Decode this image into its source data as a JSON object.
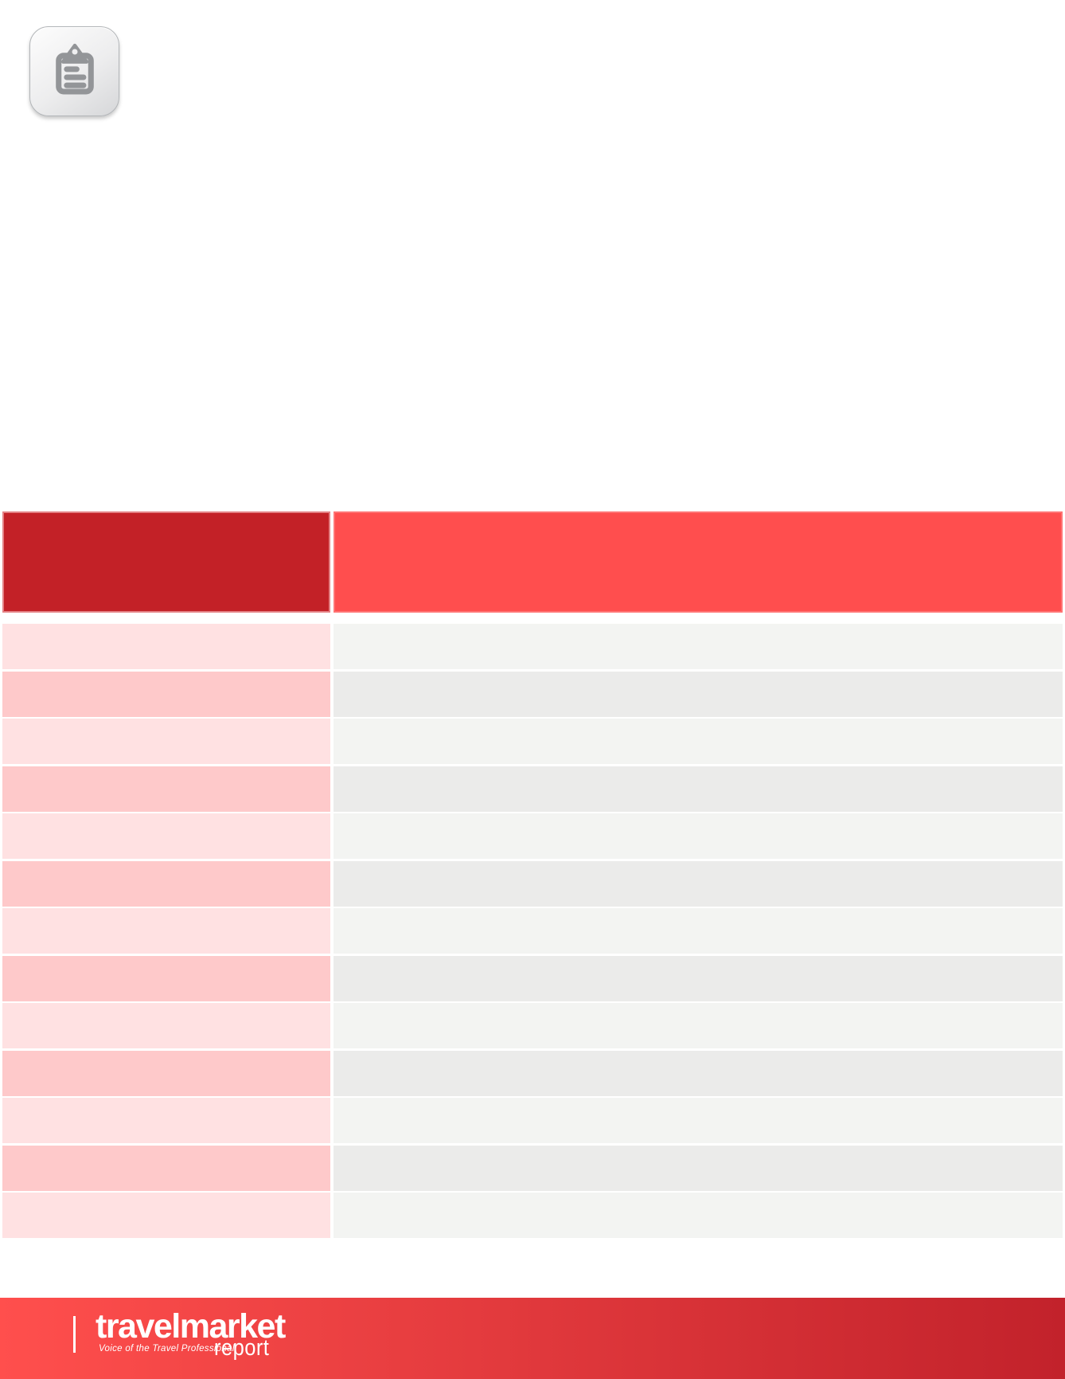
{
  "header_icon": {
    "name": "clipboard-icon"
  },
  "table": {
    "header": {
      "left_label": "",
      "right_label": ""
    },
    "rows": [
      {
        "left": "",
        "right": ""
      },
      {
        "left": "",
        "right": ""
      },
      {
        "left": "",
        "right": ""
      },
      {
        "left": "",
        "right": ""
      },
      {
        "left": "",
        "right": ""
      },
      {
        "left": "",
        "right": ""
      },
      {
        "left": "",
        "right": ""
      },
      {
        "left": "",
        "right": ""
      },
      {
        "left": "",
        "right": ""
      },
      {
        "left": "",
        "right": ""
      },
      {
        "left": "",
        "right": ""
      },
      {
        "left": "",
        "right": ""
      },
      {
        "left": "",
        "right": ""
      }
    ]
  },
  "footer": {
    "logo_title": "travelmarket",
    "logo_tagline": "Voice of the Travel Professional",
    "logo_subtitle": "report"
  },
  "colors": {
    "header_left": "#C32127",
    "header_right": "#FF4E4E",
    "row_left_odd": "#FFE1E2",
    "row_left_even": "#FEC9CA",
    "row_right_odd": "#F3F4F2",
    "row_right_even": "#EBEBEA",
    "footer_from": "#FF4F4D",
    "footer_to": "#C2222B",
    "icon_glyph": "#939598"
  }
}
